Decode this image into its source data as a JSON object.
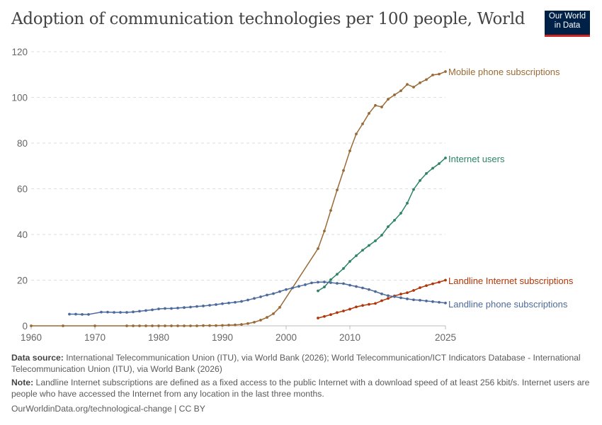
{
  "header": {
    "title": "Adoption of communication technologies per 100 people, World",
    "logo_line1": "Our World",
    "logo_line2": "in Data"
  },
  "chart_data": {
    "type": "line",
    "title": "Adoption of communication technologies per 100 people, World",
    "xlim": [
      1960,
      2025
    ],
    "ylim": [
      0,
      120
    ],
    "x_ticks": [
      "1960",
      "1970",
      "1980",
      "1990",
      "2000",
      "2010",
      "2025"
    ],
    "y_ticks": [
      "0",
      "20",
      "40",
      "60",
      "80",
      "100",
      "120"
    ],
    "grid": "horizontal dashed",
    "legend": "inline labels at line ends (right)",
    "series": [
      {
        "name": "Mobile phone subscriptions",
        "color": "#9a6a36",
        "x": [
          1960,
          1965,
          1970,
          1975,
          1976,
          1977,
          1978,
          1979,
          1980,
          1981,
          1982,
          1983,
          1984,
          1985,
          1986,
          1987,
          1988,
          1989,
          1990,
          1991,
          1992,
          1993,
          1994,
          1995,
          1996,
          1997,
          1998,
          1999,
          2005,
          2006,
          2007,
          2008,
          2009,
          2010,
          2011,
          2012,
          2013,
          2014,
          2015,
          2016,
          2017,
          2018,
          2019,
          2020,
          2021,
          2022,
          2023,
          2024,
          2025
        ],
        "y": [
          0,
          0,
          0,
          0,
          0,
          0,
          0,
          0,
          0,
          0,
          0,
          0,
          0,
          0,
          0,
          0.1,
          0.1,
          0.1,
          0.2,
          0.3,
          0.4,
          0.6,
          1,
          1.6,
          2.5,
          3.7,
          5.3,
          8.1,
          33.8,
          41.5,
          50.5,
          59.5,
          68,
          76.6,
          84,
          88.4,
          93,
          96.5,
          95.8,
          99.2,
          101.1,
          102.9,
          105.7,
          104.5,
          106.4,
          107.8,
          109.8,
          110.2,
          111.3
        ]
      },
      {
        "name": "Internet users",
        "color": "#2c8465",
        "x": [
          2005,
          2006,
          2007,
          2008,
          2009,
          2010,
          2011,
          2012,
          2013,
          2014,
          2015,
          2016,
          2017,
          2018,
          2019,
          2020,
          2021,
          2022,
          2023,
          2024,
          2025
        ],
        "y": [
          15.3,
          17,
          20.2,
          22.6,
          25.1,
          28.2,
          30.7,
          33.1,
          35.2,
          37.2,
          39.7,
          43.4,
          46.2,
          49.3,
          53.7,
          59.7,
          63.6,
          66.7,
          69,
          71,
          73.5
        ]
      },
      {
        "name": "Landline Internet subscriptions",
        "color": "#b13507",
        "x": [
          2005,
          2006,
          2007,
          2008,
          2009,
          2010,
          2011,
          2012,
          2013,
          2014,
          2015,
          2016,
          2017,
          2018,
          2019,
          2020,
          2021,
          2022,
          2023,
          2024,
          2025
        ],
        "y": [
          3.4,
          4.1,
          4.9,
          5.8,
          6.5,
          7.3,
          8.3,
          8.9,
          9.4,
          9.8,
          11,
          12,
          13.1,
          13.9,
          14.5,
          15.5,
          16.7,
          17.6,
          18.4,
          19.1,
          20
        ]
      },
      {
        "name": "Landline phone subscriptions",
        "color": "#4c6a9c",
        "x": [
          1966,
          1967,
          1968,
          1969,
          1971,
          1972,
          1973,
          1974,
          1975,
          1976,
          1977,
          1978,
          1979,
          1980,
          1981,
          1982,
          1983,
          1984,
          1985,
          1986,
          1987,
          1988,
          1989,
          1990,
          1991,
          1992,
          1993,
          1994,
          1995,
          1996,
          1997,
          1998,
          1999,
          2000,
          2001,
          2002,
          2003,
          2004,
          2005,
          2006,
          2007,
          2008,
          2009,
          2010,
          2011,
          2012,
          2013,
          2014,
          2015,
          2016,
          2017,
          2018,
          2019,
          2020,
          2021,
          2022,
          2023,
          2024,
          2025
        ],
        "y": [
          5.1,
          5.1,
          5,
          5,
          6,
          6,
          5.9,
          5.9,
          5.9,
          6.1,
          6.4,
          6.7,
          7,
          7.4,
          7.6,
          7.6,
          7.8,
          8,
          8.2,
          8.5,
          8.7,
          9,
          9.3,
          9.7,
          10,
          10.3,
          10.7,
          11.3,
          12,
          12.7,
          13.5,
          14.1,
          15,
          15.9,
          16.6,
          17.3,
          18,
          18.8,
          19.1,
          19.2,
          18.9,
          18.6,
          18.5,
          17.8,
          17.2,
          16.6,
          15.9,
          15,
          14,
          13.2,
          12.8,
          12.3,
          11.8,
          11.4,
          11.2,
          10.9,
          10.6,
          10.3,
          10
        ]
      }
    ]
  },
  "footer": {
    "source_label": "Data source:",
    "source_text": "International Telecommunication Union (ITU), via World Bank (2026); World Telecommunication/ICT Indicators Database - International Telecommunication Union (ITU), via World Bank (2026)",
    "note_label": "Note:",
    "note_text": "Landline Internet subscriptions are defined as a fixed access to the public Internet with a download speed of at least 256 kbit/s. Internet users are people who have accessed the Internet from any location in the last three months.",
    "credit": "OurWorldinData.org/technological-change | CC BY"
  }
}
